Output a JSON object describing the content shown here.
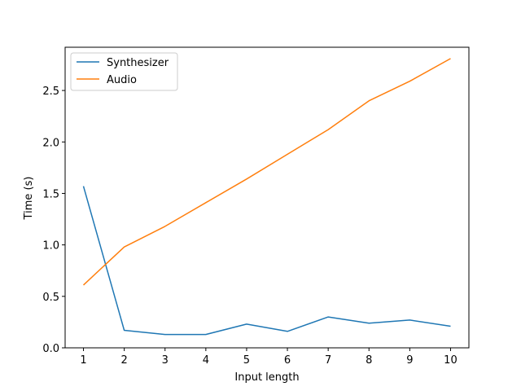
{
  "chart_data": {
    "type": "line",
    "x": [
      1,
      2,
      3,
      4,
      5,
      6,
      7,
      8,
      9,
      10
    ],
    "series": [
      {
        "name": "Synthesizer",
        "color": "#1f77b4",
        "values": [
          1.57,
          0.17,
          0.13,
          0.13,
          0.23,
          0.16,
          0.3,
          0.24,
          0.27,
          0.21
        ]
      },
      {
        "name": "Audio",
        "color": "#ff7f0e",
        "values": [
          0.61,
          0.98,
          1.18,
          1.41,
          1.64,
          1.88,
          2.12,
          2.4,
          2.59,
          2.81
        ]
      }
    ],
    "title": "",
    "xlabel": "Input length",
    "ylabel": "Time (s)",
    "xlim": [
      0.55,
      10.45
    ],
    "ylim": [
      0,
      2.92
    ],
    "xticks": [
      1,
      2,
      3,
      4,
      5,
      6,
      7,
      8,
      9,
      10
    ],
    "yticks": [
      0.0,
      0.5,
      1.0,
      1.5,
      2.0,
      2.5
    ],
    "ytick_labels": [
      "0.0",
      "0.5",
      "1.0",
      "1.5",
      "2.0",
      "2.5"
    ],
    "grid": false,
    "legend_position": "top-left"
  }
}
